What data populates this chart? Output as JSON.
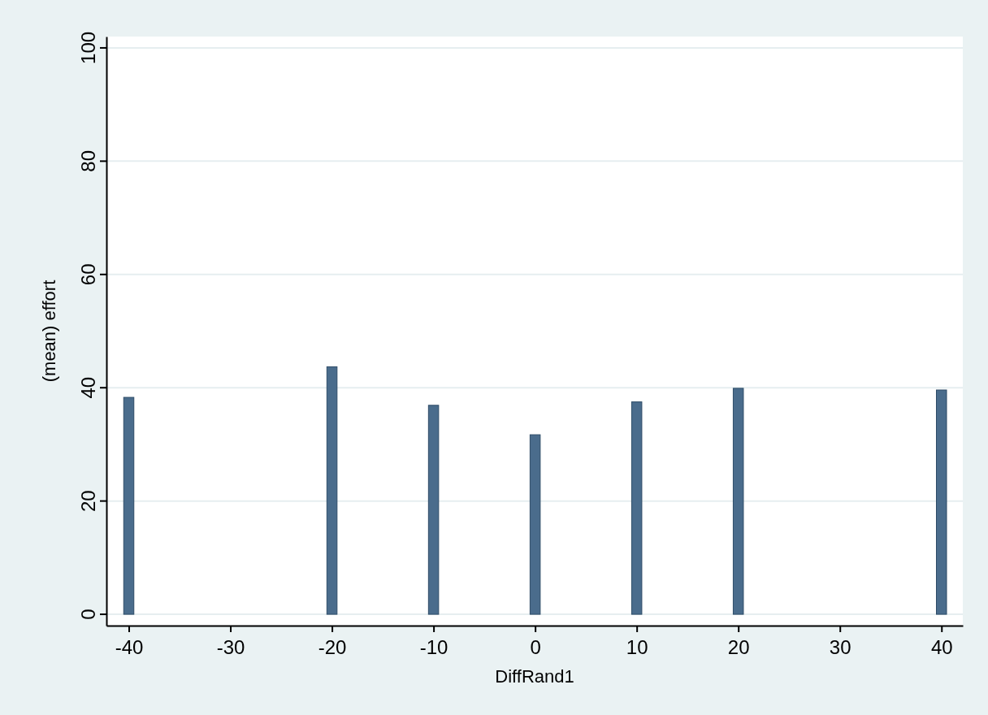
{
  "chart_data": {
    "type": "bar",
    "xlabel": "DiffRand1",
    "ylabel": "(mean) effort",
    "x": [
      -40,
      -20,
      -10,
      0,
      10,
      20,
      40
    ],
    "values": [
      38.3,
      43.7,
      36.9,
      31.7,
      37.5,
      39.9,
      39.6
    ],
    "color": "#4a6c8c",
    "xlim": [
      -42.2,
      42.1
    ],
    "xticks": [
      -40,
      -30,
      -20,
      -10,
      0,
      10,
      20,
      30,
      40
    ],
    "ylim": [
      -2,
      102
    ],
    "yticks": [
      0,
      20,
      40,
      60,
      80,
      100
    ],
    "grid": "y"
  }
}
